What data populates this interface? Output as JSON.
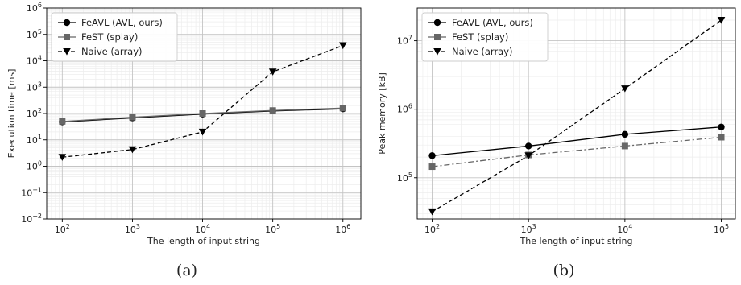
{
  "chart_data": [
    {
      "type": "line",
      "panel_caption": "(a)",
      "xlabel": "The length of input string",
      "ylabel": "Execution time [ms]",
      "xscale": "log",
      "yscale": "log",
      "xlim": [
        60,
        1800000
      ],
      "ylim": [
        0.01,
        1000000
      ],
      "xticks": [
        {
          "value": 100,
          "base": "10",
          "exp": "2"
        },
        {
          "value": 1000,
          "base": "10",
          "exp": "3"
        },
        {
          "value": 10000,
          "base": "10",
          "exp": "4"
        },
        {
          "value": 100000,
          "base": "10",
          "exp": "5"
        },
        {
          "value": 1000000,
          "base": "10",
          "exp": "6"
        }
      ],
      "yticks": [
        {
          "value": 0.01,
          "base": "10",
          "exp": "−2"
        },
        {
          "value": 0.1,
          "base": "10",
          "exp": "−1"
        },
        {
          "value": 1,
          "base": "10",
          "exp": "0"
        },
        {
          "value": 10,
          "base": "10",
          "exp": "1"
        },
        {
          "value": 100,
          "base": "10",
          "exp": "2"
        },
        {
          "value": 1000,
          "base": "10",
          "exp": "3"
        },
        {
          "value": 10000,
          "base": "10",
          "exp": "4"
        },
        {
          "value": 100000,
          "base": "10",
          "exp": "5"
        },
        {
          "value": 1000000,
          "base": "10",
          "exp": "6"
        }
      ],
      "grid": true,
      "legend_position": "top-left",
      "series": [
        {
          "name": "FeAVL (AVL, ours)",
          "color": "#000000",
          "dash": "",
          "marker": "circle",
          "x": [
            100,
            1000,
            10000,
            100000,
            1000000
          ],
          "y": [
            48,
            68,
            95,
            125,
            150
          ]
        },
        {
          "name": "FeST (splay)",
          "color": "#666666",
          "dash": "",
          "marker": "square",
          "x": [
            100,
            1000,
            10000,
            100000,
            1000000
          ],
          "y": [
            50,
            72,
            100,
            130,
            160
          ]
        },
        {
          "name": "Naive (array)",
          "color": "#000000",
          "dash": "5,3",
          "marker": "triangle-down",
          "x": [
            100,
            1000,
            10000,
            100000,
            1000000
          ],
          "y": [
            2.2,
            4.3,
            20,
            3800,
            38000
          ]
        }
      ]
    },
    {
      "type": "line",
      "panel_caption": "(b)",
      "xlabel": "The length of input string",
      "ylabel": "Peak memory [kB]",
      "xscale": "log",
      "yscale": "log",
      "xlim": [
        70,
        140000
      ],
      "ylim": [
        25000,
        30000000
      ],
      "xticks": [
        {
          "value": 100,
          "base": "10",
          "exp": "2"
        },
        {
          "value": 1000,
          "base": "10",
          "exp": "3"
        },
        {
          "value": 10000,
          "base": "10",
          "exp": "4"
        },
        {
          "value": 100000,
          "base": "10",
          "exp": "5"
        }
      ],
      "yticks": [
        {
          "value": 100000,
          "base": "10",
          "exp": "5"
        },
        {
          "value": 1000000,
          "base": "10",
          "exp": "6"
        },
        {
          "value": 10000000,
          "base": "10",
          "exp": "7"
        }
      ],
      "grid": true,
      "legend_position": "top-left",
      "series": [
        {
          "name": "FeAVL (AVL, ours)",
          "color": "#000000",
          "dash": "",
          "marker": "circle",
          "x": [
            100,
            1000,
            10000,
            100000
          ],
          "y": [
            210000,
            290000,
            430000,
            550000
          ]
        },
        {
          "name": "FeST (splay)",
          "color": "#666666",
          "dash": "7,3,2,3",
          "marker": "square",
          "x": [
            100,
            1000,
            10000,
            100000
          ],
          "y": [
            145000,
            215000,
            290000,
            390000
          ]
        },
        {
          "name": "Naive (array)",
          "color": "#000000",
          "dash": "5,3",
          "marker": "triangle-down",
          "x": [
            100,
            1000,
            10000,
            100000
          ],
          "y": [
            32000,
            210000,
            2000000,
            20000000
          ]
        }
      ]
    }
  ]
}
